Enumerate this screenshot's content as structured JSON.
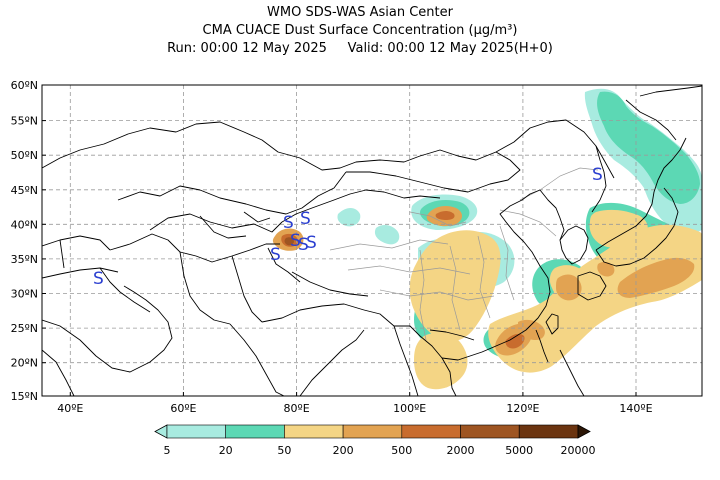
{
  "header": {
    "line1": "WMO SDS-WAS Asian Center",
    "line2": "CMA CUACE Dust Surface Concentration (μg/m³)",
    "line3_run": "Run: 00:00 12 May 2025",
    "line3_valid": "Valid: 00:00 12 May 2025(H+0)"
  },
  "axes": {
    "lat_labels": [
      "60ºN",
      "55ºN",
      "50ºN",
      "45ºN",
      "40ºN",
      "35ºN",
      "30ºN",
      "25ºN",
      "20ºN",
      "15ºN"
    ],
    "lon_labels": [
      "40ºE",
      "60ºE",
      "80ºE",
      "100ºE",
      "120ºE",
      "140ºE"
    ]
  },
  "storm_symbol": "S",
  "colorbar": {
    "labels": [
      "5",
      "20",
      "50",
      "200",
      "500",
      "2000",
      "5000",
      "20000"
    ],
    "colors": [
      "#a8ebe0",
      "#5cd8b4",
      "#f4d585",
      "#e2a352",
      "#c86c2e",
      "#9e5522",
      "#6b3410",
      "#2c1606"
    ]
  },
  "colors": {
    "level1": "#a8ebe0",
    "level2": "#5cd8b4",
    "level3": "#f4d585",
    "level4": "#e2a352",
    "level5": "#c86c2e",
    "level6": "#9e5522",
    "symbol": "#2b3fd0"
  }
}
